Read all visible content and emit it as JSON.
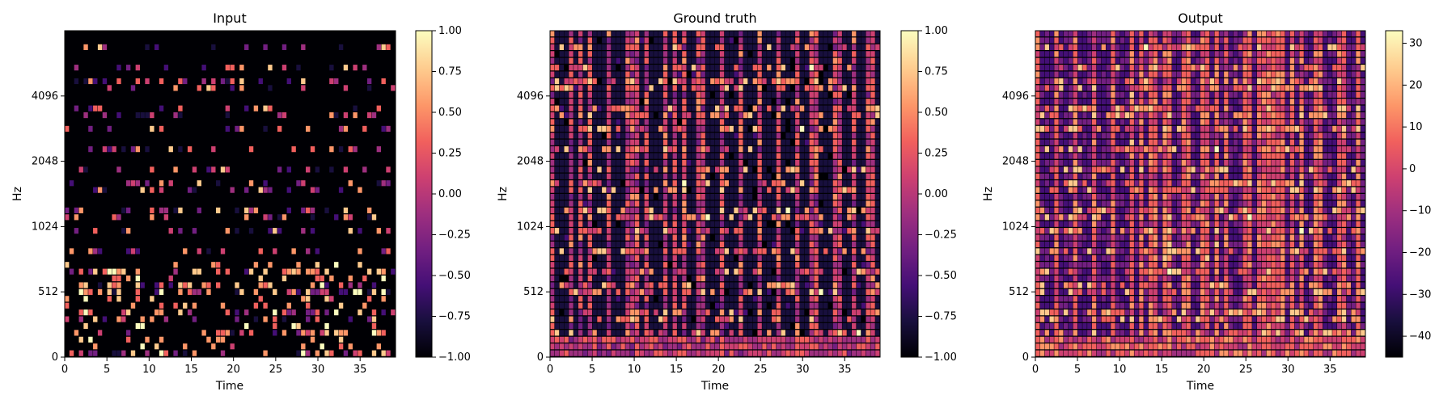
{
  "chart_data": [
    {
      "type": "heatmap",
      "title": "Input",
      "xlabel": "Time",
      "ylabel": "Hz",
      "x_ticks": [
        0,
        5,
        10,
        15,
        20,
        25,
        30,
        35
      ],
      "y_ticks": [
        "0",
        "512",
        "1024",
        "2048",
        "4096"
      ],
      "colorbar": {
        "ticks": [
          "1.00",
          "0.75",
          "0.50",
          "0.25",
          "0.00",
          "−0.25",
          "−0.50",
          "−0.75",
          "−1.00"
        ],
        "vmin": -1.0,
        "vmax": 1.0
      },
      "colormap": "magma",
      "style": "sparse"
    },
    {
      "type": "heatmap",
      "title": "Ground truth",
      "xlabel": "Time",
      "ylabel": "Hz",
      "x_ticks": [
        0,
        5,
        10,
        15,
        20,
        25,
        30,
        35
      ],
      "y_ticks": [
        "0",
        "512",
        "1024",
        "2048",
        "4096"
      ],
      "colorbar": {
        "ticks": [
          "1.00",
          "0.75",
          "0.50",
          "0.25",
          "0.00",
          "−0.25",
          "−0.50",
          "−0.75",
          "−1.00"
        ],
        "vmin": -1.0,
        "vmax": 1.0
      },
      "colormap": "magma",
      "style": "dense"
    },
    {
      "type": "heatmap",
      "title": "Output",
      "xlabel": "Time",
      "ylabel": "Hz",
      "x_ticks": [
        0,
        5,
        10,
        15,
        20,
        25,
        30,
        35
      ],
      "y_ticks": [
        "0",
        "512",
        "1024",
        "2048",
        "4096"
      ],
      "colorbar": {
        "ticks": [
          "30",
          "20",
          "10",
          "0",
          "−10",
          "−20",
          "−30",
          "−40"
        ],
        "vmin": -45,
        "vmax": 33
      },
      "colormap": "magma",
      "style": "smooth"
    }
  ],
  "colors": {
    "magma": [
      "#000004",
      "#180f3d",
      "#440f76",
      "#721f81",
      "#9e2f7f",
      "#cd4071",
      "#f1605d",
      "#fd9668",
      "#feca8d",
      "#fcfdbf"
    ]
  }
}
